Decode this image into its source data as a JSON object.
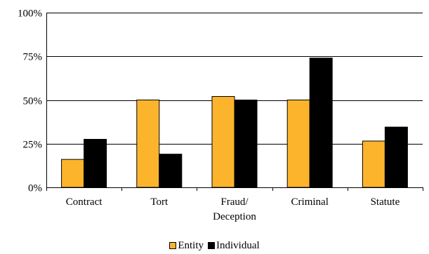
{
  "chart_data": {
    "type": "bar",
    "categories": [
      "Contract",
      "Tort",
      "Fraud/\nDeception",
      "Criminal",
      "Statute"
    ],
    "series": [
      {
        "name": "Entity",
        "values": [
          16,
          50,
          52,
          50,
          26.5
        ],
        "color": "#FDB42D"
      },
      {
        "name": "Individual",
        "values": [
          27.5,
          19,
          50,
          74,
          34.5
        ],
        "color": "#000000"
      }
    ],
    "ylim": [
      0,
      100
    ],
    "yticks": [
      0,
      25,
      50,
      75,
      100
    ],
    "ytick_labels": [
      "0%",
      "25%",
      "50%",
      "75%",
      "100%"
    ],
    "title": "",
    "xlabel": "",
    "ylabel": "",
    "grid": true,
    "legend_position": "bottom"
  }
}
